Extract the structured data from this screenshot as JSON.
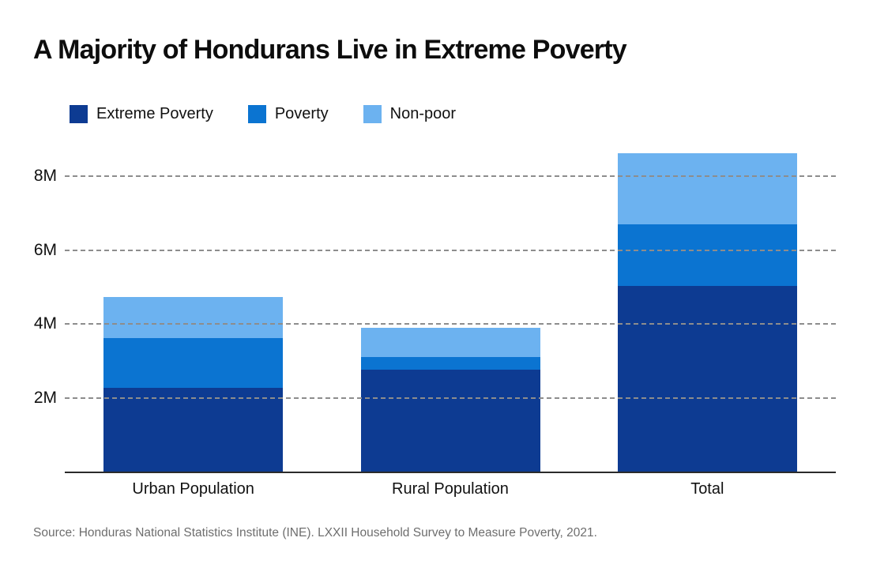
{
  "title": "A Majority of Hondurans Live in Extreme Poverty",
  "source": "Source: Honduras National Statistics Institute (INE). LXXII Household Survey to Measure Poverty, 2021.",
  "colors": {
    "extreme_poverty": "#0d3b92",
    "poverty": "#0b74d1",
    "non_poor": "#6cb2f0",
    "gridline": "#8d8d8d",
    "axis_line": "#2b2b2b",
    "title_text": "#0d0d0d",
    "source_text": "#6e6e6e"
  },
  "chart_data": {
    "type": "bar",
    "stacked": true,
    "title": "A Majority of Hondurans Live in Extreme Poverty",
    "categories": [
      "Urban Population",
      "Rural Population",
      "Total"
    ],
    "series": [
      {
        "name": "Extreme Poverty",
        "color": "#0d3b92",
        "values": [
          2.27,
          2.76,
          5.03
        ]
      },
      {
        "name": "Poverty",
        "color": "#0b74d1",
        "values": [
          1.34,
          0.34,
          1.68
        ]
      },
      {
        "name": "Non-poor",
        "color": "#6cb2f0",
        "values": [
          1.12,
          0.79,
          1.91
        ]
      }
    ],
    "totals": [
      4.73,
      3.89,
      8.62
    ],
    "unit": "millions of people",
    "xlabel": "",
    "ylabel": "",
    "yticks": [
      2,
      4,
      6,
      8
    ],
    "ytick_labels": [
      "2M",
      "4M",
      "6M",
      "8M"
    ],
    "ylim": [
      0,
      8.93
    ],
    "grid": "horizontal-dashed-over-bars",
    "legend_position": "top-left"
  }
}
